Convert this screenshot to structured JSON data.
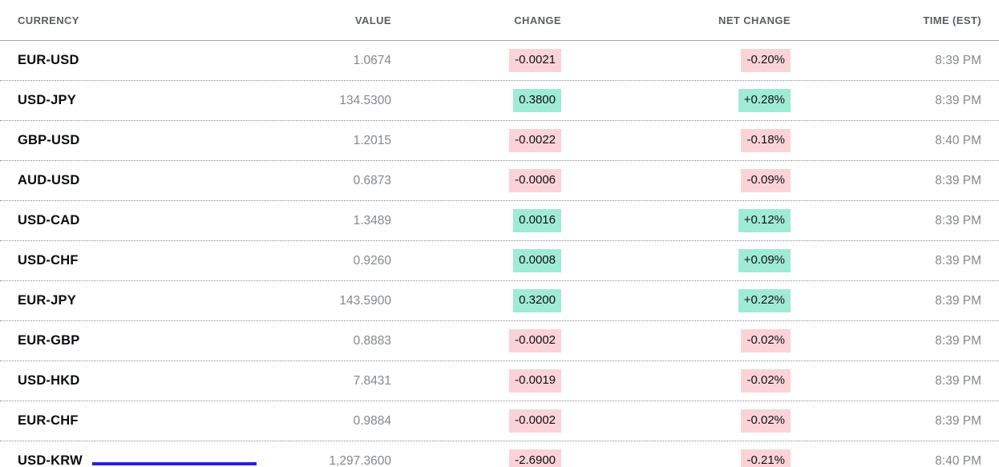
{
  "table": {
    "columns": [
      {
        "key": "pair",
        "label": "CURRENCY",
        "align": "left"
      },
      {
        "key": "value",
        "label": "VALUE",
        "align": "right"
      },
      {
        "key": "change",
        "label": "CHANGE",
        "align": "right"
      },
      {
        "key": "net_change",
        "label": "NET CHANGE",
        "align": "right"
      },
      {
        "key": "time",
        "label": "TIME (EST)",
        "align": "right"
      }
    ],
    "rows": [
      {
        "pair": "EUR-USD",
        "value": "1.0674",
        "change": "-0.0021",
        "net_change": "-0.20%",
        "time": "8:39 PM",
        "direction": "down"
      },
      {
        "pair": "USD-JPY",
        "value": "134.5300",
        "change": "0.3800",
        "net_change": "+0.28%",
        "time": "8:39 PM",
        "direction": "up"
      },
      {
        "pair": "GBP-USD",
        "value": "1.2015",
        "change": "-0.0022",
        "net_change": "-0.18%",
        "time": "8:40 PM",
        "direction": "down"
      },
      {
        "pair": "AUD-USD",
        "value": "0.6873",
        "change": "-0.0006",
        "net_change": "-0.09%",
        "time": "8:39 PM",
        "direction": "down"
      },
      {
        "pair": "USD-CAD",
        "value": "1.3489",
        "change": "0.0016",
        "net_change": "+0.12%",
        "time": "8:39 PM",
        "direction": "up"
      },
      {
        "pair": "USD-CHF",
        "value": "0.9260",
        "change": "0.0008",
        "net_change": "+0.09%",
        "time": "8:39 PM",
        "direction": "up"
      },
      {
        "pair": "EUR-JPY",
        "value": "143.5900",
        "change": "0.3200",
        "net_change": "+0.22%",
        "time": "8:39 PM",
        "direction": "up"
      },
      {
        "pair": "EUR-GBP",
        "value": "0.8883",
        "change": "-0.0002",
        "net_change": "-0.02%",
        "time": "8:39 PM",
        "direction": "down"
      },
      {
        "pair": "USD-HKD",
        "value": "7.8431",
        "change": "-0.0019",
        "net_change": "-0.02%",
        "time": "8:39 PM",
        "direction": "down"
      },
      {
        "pair": "EUR-CHF",
        "value": "0.9884",
        "change": "-0.0002",
        "net_change": "-0.02%",
        "time": "8:39 PM",
        "direction": "down"
      },
      {
        "pair": "USD-KRW",
        "value": "1,297.3600",
        "change": "-2.6900",
        "net_change": "-0.21%",
        "time": "8:40 PM",
        "direction": "down"
      }
    ]
  },
  "colors": {
    "positive_bg": "#9FEBD3",
    "negative_bg": "#FAD3D8",
    "accent_bar": "#2B1FE0"
  }
}
